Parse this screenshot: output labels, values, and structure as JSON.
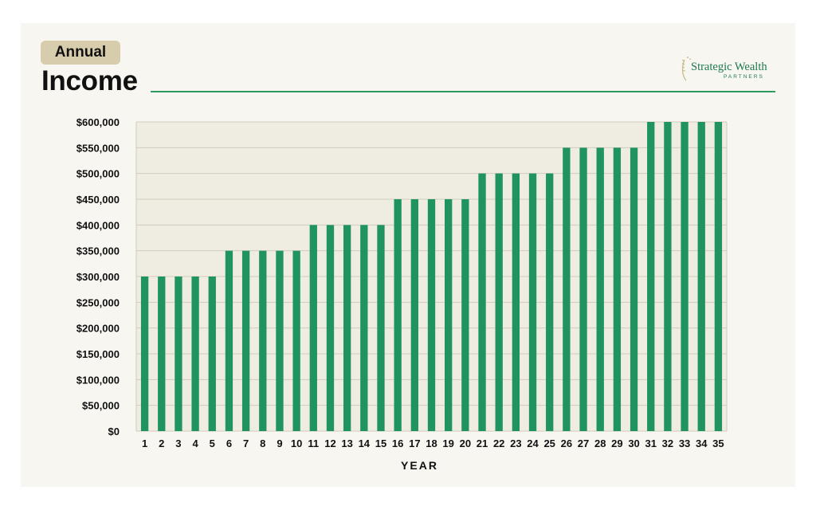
{
  "header": {
    "badge": "Annual",
    "title": "Income"
  },
  "logo": {
    "name": "Strategic Wealth",
    "sub": "PARTNERS"
  },
  "colors": {
    "bar": "#1f9460",
    "plot_bg": "#efece2",
    "grid": "#cfcbbd",
    "accent_rule": "#2e9a62",
    "badge": "#d7ccab"
  },
  "chart_data": {
    "type": "bar",
    "title": "Income",
    "xlabel": "YEAR",
    "ylabel": "",
    "ylim": [
      0,
      600000
    ],
    "grid": true,
    "categories": [
      "1",
      "2",
      "3",
      "4",
      "5",
      "6",
      "7",
      "8",
      "9",
      "10",
      "11",
      "12",
      "13",
      "14",
      "15",
      "16",
      "17",
      "18",
      "19",
      "20",
      "21",
      "22",
      "23",
      "24",
      "25",
      "26",
      "27",
      "28",
      "29",
      "30",
      "31",
      "32",
      "33",
      "34",
      "35"
    ],
    "values": [
      300000,
      300000,
      300000,
      300000,
      300000,
      350000,
      350000,
      350000,
      350000,
      350000,
      400000,
      400000,
      400000,
      400000,
      400000,
      450000,
      450000,
      450000,
      450000,
      450000,
      500000,
      500000,
      500000,
      500000,
      500000,
      550000,
      550000,
      550000,
      550000,
      550000,
      600000,
      600000,
      600000,
      600000,
      600000
    ],
    "y_ticks": [
      0,
      50000,
      100000,
      150000,
      200000,
      250000,
      300000,
      350000,
      400000,
      450000,
      500000,
      550000,
      600000
    ],
    "y_tick_labels": [
      "$0",
      "$50,000",
      "$100,000",
      "$150,000",
      "$200,000",
      "$250,000",
      "$300,000",
      "$350,000",
      "$400,000",
      "$450,000",
      "$500,000",
      "$550,000",
      "$600,000"
    ]
  }
}
